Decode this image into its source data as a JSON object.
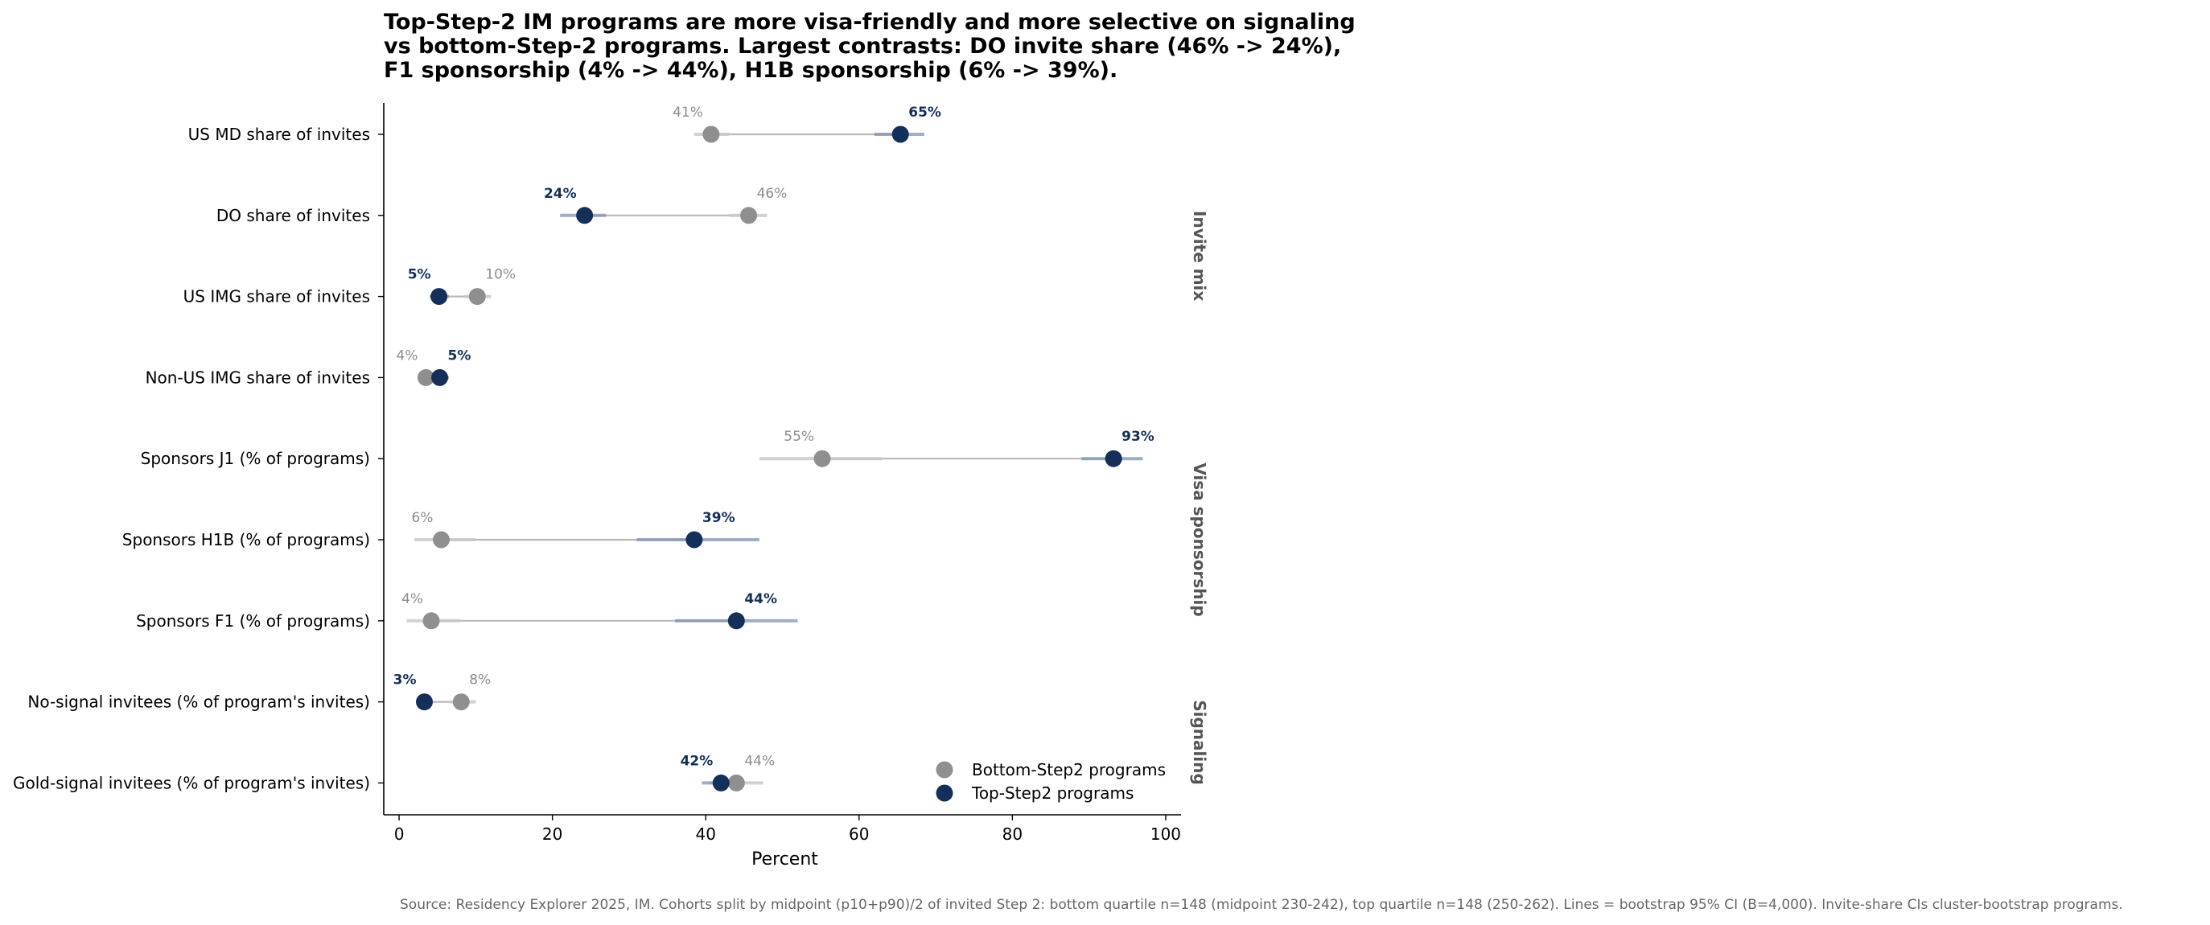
{
  "chart_data": {
    "type": "scatter",
    "title_lines": [
      "Top-Step-2 IM programs are more visa-friendly and more selective on signaling",
      "vs bottom-Step-2 programs. Largest contrasts: DO invite share (46% -> 24%),",
      "F1 sponsorship (4% -> 44%), H1B sponsorship (6% -> 39%)."
    ],
    "xlabel": "Percent",
    "xlim": [
      -2,
      102
    ],
    "xticks": [
      0,
      20,
      40,
      60,
      80,
      100
    ],
    "grid": false,
    "legend_position": "lower-right",
    "categories": [
      "US MD share of invites",
      "DO share of invites",
      "US IMG share of invites",
      "Non-US IMG share of invites",
      "Sponsors J1 (% of programs)",
      "Sponsors H1B (% of programs)",
      "Sponsors F1 (% of programs)",
      "No-signal invitees (% of program's invites)",
      "Gold-signal invitees (% of program's invites)"
    ],
    "groups": [
      {
        "label": "Invite mix",
        "from": 0,
        "to": 3
      },
      {
        "label": "Visa sponsorship",
        "from": 4,
        "to": 6
      },
      {
        "label": "Signaling",
        "from": 7,
        "to": 8
      }
    ],
    "series": [
      {
        "name": "Bottom-Step2 programs",
        "color": "#8f8f8f",
        "values": [
          40.7,
          45.6,
          10.2,
          3.5,
          55.2,
          5.5,
          4.2,
          8.1,
          44.0
        ],
        "value_labels": [
          "41%",
          "46%",
          "10%",
          "4%",
          "55%",
          "6%",
          "4%",
          "8%",
          "44%"
        ],
        "ci": [
          [
            38.5,
            43.0
          ],
          [
            43.0,
            48.0
          ],
          [
            8.5,
            12.0
          ],
          [
            2.5,
            4.5
          ],
          [
            47.0,
            63.0
          ],
          [
            2.0,
            10.0
          ],
          [
            1.0,
            8.0
          ],
          [
            6.5,
            10.0
          ],
          [
            40.5,
            47.5
          ]
        ]
      },
      {
        "name": "Top-Step2 programs",
        "color": "#14305a",
        "values": [
          65.4,
          24.2,
          5.2,
          5.3,
          93.2,
          38.5,
          44.0,
          3.3,
          42.0
        ],
        "value_labels": [
          "65%",
          "24%",
          "5%",
          "5%",
          "93%",
          "39%",
          "44%",
          "3%",
          "42%"
        ],
        "ci": [
          [
            62.0,
            68.5
          ],
          [
            21.0,
            27.0
          ],
          [
            4.0,
            6.5
          ],
          [
            4.0,
            6.5
          ],
          [
            89.0,
            97.0
          ],
          [
            31.0,
            47.0
          ],
          [
            36.0,
            52.0
          ],
          [
            2.5,
            4.3
          ],
          [
            39.5,
            45.0
          ]
        ]
      }
    ],
    "source_note": "Source: Residency Explorer 2025, IM. Cohorts split by midpoint (p10+p90)/2 of invited Step 2: bottom quartile n=148 (midpoint 230-242), top quartile n=148 (250-262). Lines = bootstrap 95% CI (B=4,000). Invite-share CIs cluster-bootstrap programs."
  }
}
